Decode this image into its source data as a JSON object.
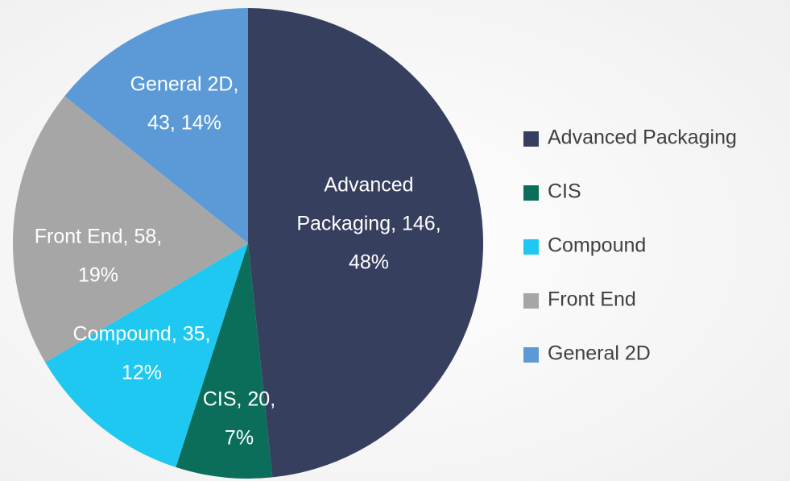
{
  "chart_data": {
    "type": "pie",
    "categories": [
      "Advanced Packaging",
      "CIS",
      "Compound",
      "Front End",
      "General 2D"
    ],
    "values": [
      146,
      20,
      35,
      58,
      43
    ],
    "value_labels": [
      [
        "Advanced",
        "Packaging, 146,",
        "48%"
      ],
      [
        "CIS, 20,",
        "7%"
      ],
      [
        "Compound, 35,",
        "12%"
      ],
      [
        "Front End, 58,",
        "19%"
      ],
      [
        "General 2D,",
        "43, 14%"
      ]
    ],
    "colors": [
      "#373f5f",
      "#0b6e5a",
      "#1ec8f0",
      "#a6a6a6",
      "#5b9ad6"
    ],
    "legend": "right"
  }
}
